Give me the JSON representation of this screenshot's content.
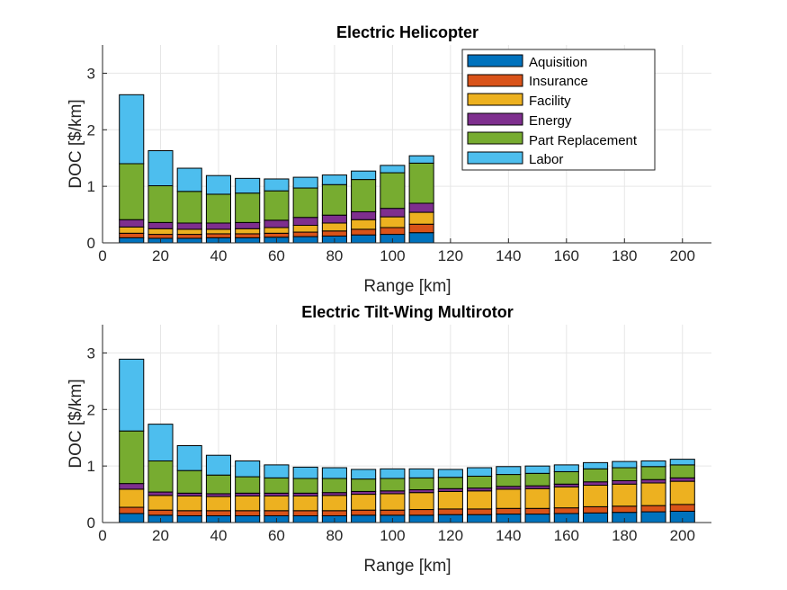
{
  "segments": [
    "Aquisition",
    "Insurance",
    "Facility",
    "Energy",
    "Part Replacement",
    "Labor"
  ],
  "colors": [
    "#0072BD",
    "#D95319",
    "#EDB120",
    "#7E2F8E",
    "#77AC30",
    "#4DBEEE"
  ],
  "chart_data": [
    {
      "type": "bar",
      "stacked": true,
      "title": "Electric Helicopter",
      "xlabel": "Range [km]",
      "ylabel": "DOC [$/km]",
      "xlim": [
        0,
        210
      ],
      "ylim": [
        0,
        3.5
      ],
      "xticks": [
        0,
        20,
        40,
        60,
        80,
        100,
        120,
        140,
        160,
        180,
        200
      ],
      "yticks": [
        0,
        1,
        2,
        3
      ],
      "grid": true,
      "legend": "top-right",
      "x": [
        10,
        20,
        30,
        40,
        50,
        60,
        70,
        80,
        90,
        100,
        110
      ],
      "series": [
        {
          "name": "Aquisition",
          "values": [
            0.09,
            0.08,
            0.08,
            0.09,
            0.09,
            0.1,
            0.11,
            0.12,
            0.14,
            0.15,
            0.18
          ]
        },
        {
          "name": "Insurance",
          "values": [
            0.08,
            0.07,
            0.07,
            0.07,
            0.07,
            0.07,
            0.08,
            0.09,
            0.1,
            0.12,
            0.15
          ]
        },
        {
          "name": "Facility",
          "values": [
            0.11,
            0.1,
            0.09,
            0.08,
            0.09,
            0.1,
            0.12,
            0.14,
            0.17,
            0.19,
            0.21
          ]
        },
        {
          "name": "Energy",
          "values": [
            0.13,
            0.11,
            0.11,
            0.11,
            0.11,
            0.13,
            0.14,
            0.14,
            0.14,
            0.15,
            0.16
          ]
        },
        {
          "name": "Part Replacement",
          "values": [
            0.99,
            0.65,
            0.56,
            0.51,
            0.52,
            0.52,
            0.52,
            0.54,
            0.57,
            0.63,
            0.71
          ]
        },
        {
          "name": "Labor",
          "values": [
            1.22,
            0.62,
            0.41,
            0.33,
            0.26,
            0.21,
            0.19,
            0.17,
            0.15,
            0.13,
            0.13
          ]
        }
      ]
    },
    {
      "type": "bar",
      "stacked": true,
      "title": "Electric Tilt-Wing Multirotor",
      "xlabel": "Range [km]",
      "ylabel": "DOC [$/km]",
      "xlim": [
        0,
        210
      ],
      "ylim": [
        0,
        3.5
      ],
      "xticks": [
        0,
        20,
        40,
        60,
        80,
        100,
        120,
        140,
        160,
        180,
        200
      ],
      "yticks": [
        0,
        1,
        2,
        3
      ],
      "grid": true,
      "x": [
        10,
        20,
        30,
        40,
        50,
        60,
        70,
        80,
        90,
        100,
        110,
        120,
        130,
        140,
        150,
        160,
        170,
        180,
        190,
        200
      ],
      "series": [
        {
          "name": "Aquisition",
          "values": [
            0.16,
            0.13,
            0.12,
            0.12,
            0.12,
            0.12,
            0.12,
            0.12,
            0.13,
            0.13,
            0.13,
            0.14,
            0.14,
            0.15,
            0.15,
            0.16,
            0.17,
            0.18,
            0.19,
            0.2
          ]
        },
        {
          "name": "Insurance",
          "values": [
            0.11,
            0.09,
            0.09,
            0.09,
            0.09,
            0.09,
            0.09,
            0.09,
            0.09,
            0.09,
            0.1,
            0.1,
            0.1,
            0.1,
            0.1,
            0.1,
            0.11,
            0.11,
            0.11,
            0.12
          ]
        },
        {
          "name": "Facility",
          "values": [
            0.32,
            0.26,
            0.26,
            0.25,
            0.26,
            0.26,
            0.26,
            0.27,
            0.28,
            0.29,
            0.3,
            0.31,
            0.32,
            0.34,
            0.35,
            0.37,
            0.38,
            0.39,
            0.4,
            0.41
          ]
        },
        {
          "name": "Energy",
          "values": [
            0.1,
            0.06,
            0.05,
            0.05,
            0.05,
            0.05,
            0.05,
            0.05,
            0.05,
            0.05,
            0.05,
            0.05,
            0.05,
            0.05,
            0.05,
            0.05,
            0.06,
            0.06,
            0.06,
            0.06
          ]
        },
        {
          "name": "Part Replacement",
          "values": [
            0.93,
            0.55,
            0.4,
            0.33,
            0.29,
            0.27,
            0.26,
            0.25,
            0.22,
            0.22,
            0.21,
            0.2,
            0.21,
            0.21,
            0.22,
            0.22,
            0.23,
            0.23,
            0.23,
            0.23
          ]
        },
        {
          "name": "Labor",
          "values": [
            1.27,
            0.65,
            0.44,
            0.35,
            0.28,
            0.23,
            0.2,
            0.19,
            0.17,
            0.17,
            0.16,
            0.14,
            0.15,
            0.14,
            0.13,
            0.12,
            0.11,
            0.11,
            0.1,
            0.1
          ]
        }
      ]
    }
  ]
}
